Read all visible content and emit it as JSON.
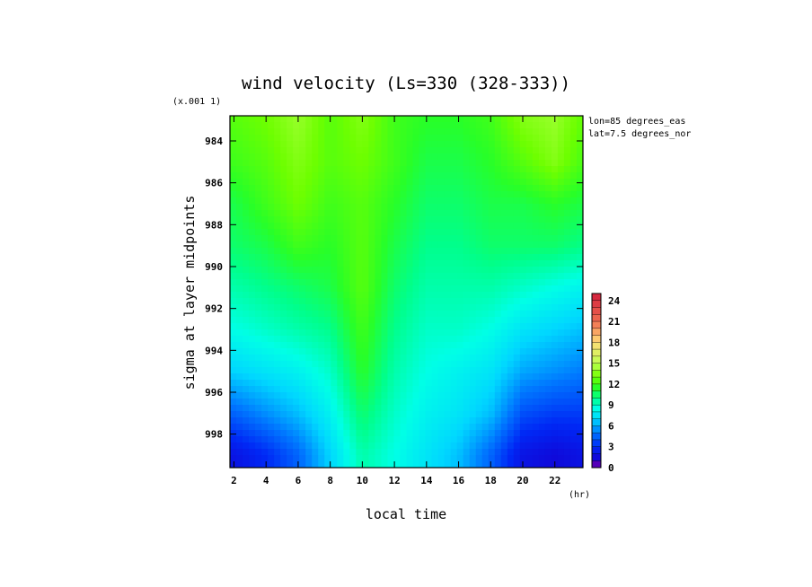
{
  "chart_data": {
    "type": "heatmap",
    "title": "wind velocity (Ls=330 (328-333))",
    "xlabel": "local time",
    "xunit": "(hr)",
    "ylabel": "sigma at layer midpoints",
    "yscale_note": "(x.001 1)",
    "annotations": [
      "lon=85 degrees_eas",
      "lat=7.5 degrees_nor"
    ],
    "x_ticks": [
      "2",
      "4",
      "6",
      "8",
      "10",
      "12",
      "14",
      "16",
      "18",
      "20",
      "22"
    ],
    "y_ticks": [
      "984",
      "986",
      "988",
      "990",
      "992",
      "994",
      "996",
      "998"
    ],
    "xlim": [
      1.75,
      23.75
    ],
    "ylim": [
      999.6,
      982.8
    ],
    "colorbar_ticks": [
      "24",
      "21",
      "18",
      "15",
      "12",
      "9",
      "6",
      "3",
      "0"
    ],
    "colorbar_range": [
      0,
      25
    ],
    "x": [
      2,
      4,
      6,
      8,
      10,
      12,
      14,
      16,
      18,
      20,
      22,
      24
    ],
    "y": [
      983.0,
      985.0,
      987.0,
      989.0,
      991.0,
      993.0,
      995.0,
      997.0,
      999.0
    ],
    "z": [
      [
        12.5,
        13.0,
        14.0,
        12.5,
        13.5,
        12.0,
        11.5,
        11.5,
        12.0,
        13.5,
        14.0,
        12.5
      ],
      [
        12.0,
        12.5,
        13.5,
        12.5,
        13.0,
        12.0,
        11.0,
        11.0,
        11.5,
        12.5,
        13.5,
        12.0
      ],
      [
        11.0,
        12.0,
        13.0,
        12.0,
        12.5,
        11.5,
        10.5,
        10.5,
        11.0,
        11.0,
        11.5,
        11.0
      ],
      [
        10.5,
        11.0,
        12.0,
        11.5,
        12.5,
        11.0,
        10.0,
        10.0,
        10.5,
        10.5,
        10.5,
        10.0
      ],
      [
        9.5,
        10.0,
        10.5,
        11.0,
        12.5,
        10.5,
        9.5,
        9.5,
        9.5,
        9.0,
        8.5,
        8.0
      ],
      [
        8.5,
        9.0,
        9.5,
        10.0,
        12.0,
        10.0,
        9.0,
        9.0,
        8.5,
        7.5,
        7.0,
        6.5
      ],
      [
        7.0,
        7.5,
        8.0,
        9.0,
        11.5,
        9.5,
        8.5,
        8.0,
        7.5,
        6.0,
        5.5,
        5.0
      ],
      [
        4.5,
        5.5,
        6.5,
        8.0,
        10.5,
        9.0,
        8.0,
        7.5,
        6.5,
        4.0,
        3.5,
        3.5
      ],
      [
        2.0,
        3.0,
        4.5,
        7.0,
        9.5,
        8.5,
        7.5,
        6.5,
        4.5,
        2.0,
        1.5,
        2.0
      ]
    ]
  }
}
